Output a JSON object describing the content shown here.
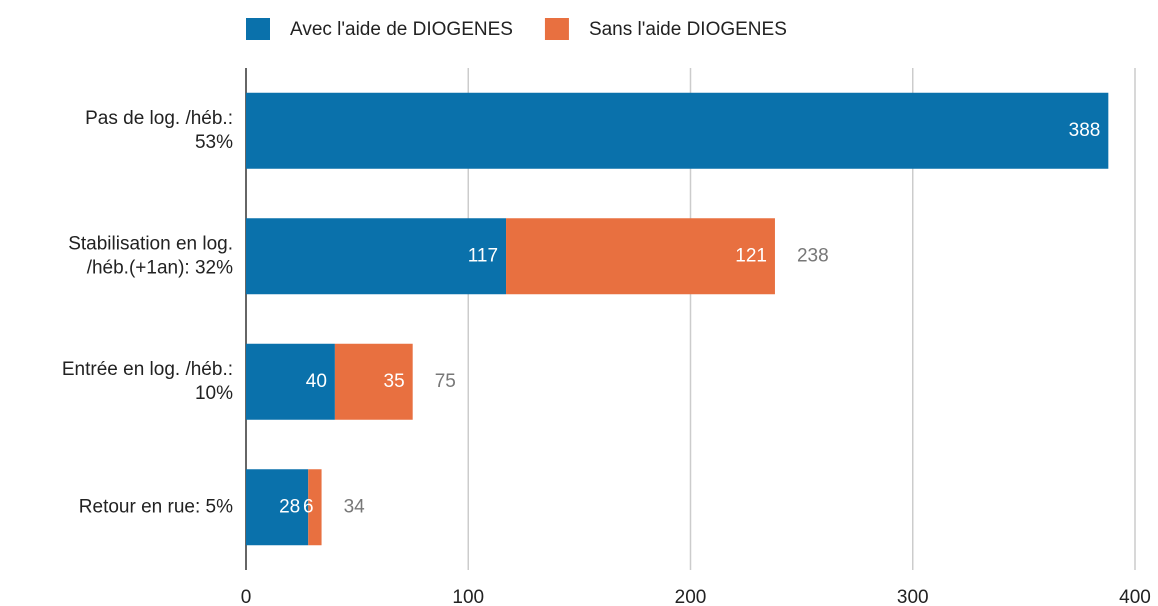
{
  "chart_data": {
    "type": "stacked_barh",
    "categories": [
      [
        "Pas de log. /héb.:",
        "53%"
      ],
      [
        "Stabilisation en log.",
        "/héb.(+1an): 32%"
      ],
      [
        "Entrée en log. /héb.:",
        "10%"
      ],
      [
        "Retour en rue: 5%"
      ]
    ],
    "series": [
      {
        "name": "Avec l'aide de DIOGENES",
        "color": "#0a71ab",
        "values": [
          388,
          117,
          40,
          28
        ]
      },
      {
        "name": "Sans l'aide DIOGENES",
        "color": "#e87040",
        "values": [
          null,
          121,
          35,
          6
        ]
      }
    ],
    "totals": [
      null,
      238,
      75,
      34
    ],
    "xlim": [
      0,
      400
    ],
    "xticks": [
      0,
      100,
      200,
      300,
      400
    ],
    "grid": true,
    "legend": "top"
  }
}
